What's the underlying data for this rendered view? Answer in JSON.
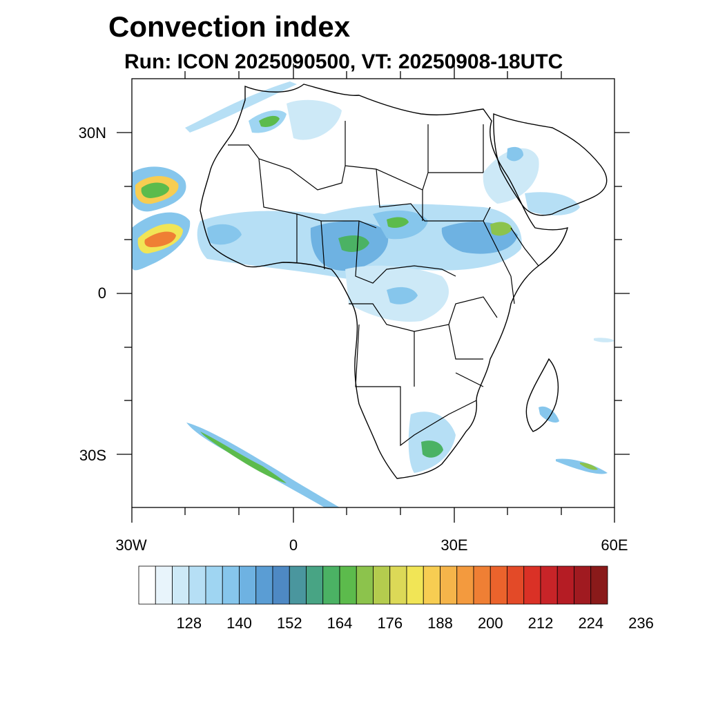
{
  "title": "Convection index",
  "subtitle": "Run: ICON 2025090500,  VT: 20250908-18UTC",
  "axes": {
    "lat_ticks": [
      {
        "value": 30,
        "label": "30N"
      },
      {
        "value": 0,
        "label": "0"
      },
      {
        "value": -30,
        "label": "30S"
      }
    ],
    "lon_ticks": [
      {
        "value": -30,
        "label": "30W"
      },
      {
        "value": 0,
        "label": "0"
      },
      {
        "value": 30,
        "label": "30E"
      },
      {
        "value": 60,
        "label": "60E"
      }
    ],
    "lon_range": [
      -30,
      60
    ],
    "lat_range": [
      -40,
      40
    ]
  },
  "colorbar": {
    "colors": [
      "#ffffff",
      "#e8f4fb",
      "#cde9f7",
      "#b6dff5",
      "#9fd5f2",
      "#86c6ec",
      "#6eb2e2",
      "#5a9dd4",
      "#4e89c4",
      "#4a969e",
      "#48a484",
      "#4bb264",
      "#5cbb4c",
      "#8cc34c",
      "#b4cc4e",
      "#dcd957",
      "#f1e556",
      "#f7cd52",
      "#f5b44a",
      "#f39a3e",
      "#ef7f34",
      "#eb632c",
      "#e34a28",
      "#da3126",
      "#c82428",
      "#b51c24",
      "#a01a20",
      "#8a1a1a"
    ],
    "labels": [
      "128",
      "140",
      "152",
      "164",
      "176",
      "188",
      "200",
      "212",
      "224",
      "236"
    ]
  }
}
